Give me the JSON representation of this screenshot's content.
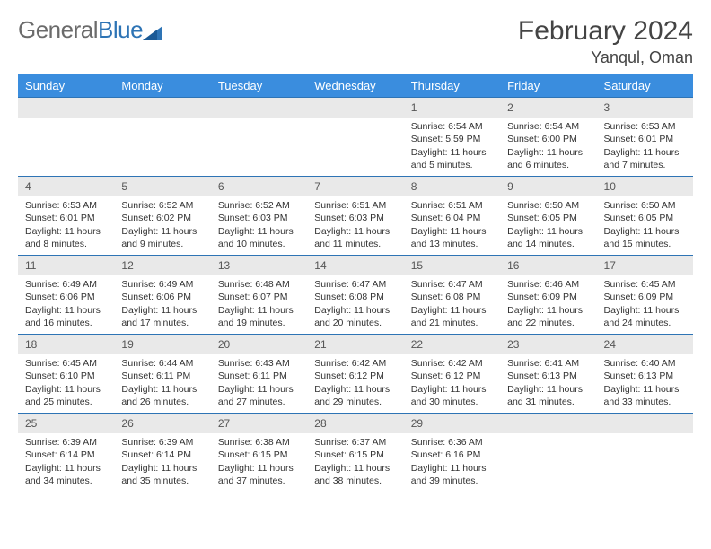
{
  "logo": {
    "text1": "General",
    "text2": "Blue"
  },
  "title": "February 2024",
  "location": "Yanqul, Oman",
  "colors": {
    "header_bg": "#3a8dde",
    "header_text": "#ffffff",
    "daynum_bg": "#e9e9e9",
    "row_border": "#2e74b5",
    "logo_gray": "#6b6b6b",
    "logo_blue": "#2e74b5"
  },
  "weekdays": [
    "Sunday",
    "Monday",
    "Tuesday",
    "Wednesday",
    "Thursday",
    "Friday",
    "Saturday"
  ],
  "weeks": [
    [
      {
        "day": "",
        "lines": []
      },
      {
        "day": "",
        "lines": []
      },
      {
        "day": "",
        "lines": []
      },
      {
        "day": "",
        "lines": []
      },
      {
        "day": "1",
        "lines": [
          "Sunrise: 6:54 AM",
          "Sunset: 5:59 PM",
          "Daylight: 11 hours and 5 minutes."
        ]
      },
      {
        "day": "2",
        "lines": [
          "Sunrise: 6:54 AM",
          "Sunset: 6:00 PM",
          "Daylight: 11 hours and 6 minutes."
        ]
      },
      {
        "day": "3",
        "lines": [
          "Sunrise: 6:53 AM",
          "Sunset: 6:01 PM",
          "Daylight: 11 hours and 7 minutes."
        ]
      }
    ],
    [
      {
        "day": "4",
        "lines": [
          "Sunrise: 6:53 AM",
          "Sunset: 6:01 PM",
          "Daylight: 11 hours and 8 minutes."
        ]
      },
      {
        "day": "5",
        "lines": [
          "Sunrise: 6:52 AM",
          "Sunset: 6:02 PM",
          "Daylight: 11 hours and 9 minutes."
        ]
      },
      {
        "day": "6",
        "lines": [
          "Sunrise: 6:52 AM",
          "Sunset: 6:03 PM",
          "Daylight: 11 hours and 10 minutes."
        ]
      },
      {
        "day": "7",
        "lines": [
          "Sunrise: 6:51 AM",
          "Sunset: 6:03 PM",
          "Daylight: 11 hours and 11 minutes."
        ]
      },
      {
        "day": "8",
        "lines": [
          "Sunrise: 6:51 AM",
          "Sunset: 6:04 PM",
          "Daylight: 11 hours and 13 minutes."
        ]
      },
      {
        "day": "9",
        "lines": [
          "Sunrise: 6:50 AM",
          "Sunset: 6:05 PM",
          "Daylight: 11 hours and 14 minutes."
        ]
      },
      {
        "day": "10",
        "lines": [
          "Sunrise: 6:50 AM",
          "Sunset: 6:05 PM",
          "Daylight: 11 hours and 15 minutes."
        ]
      }
    ],
    [
      {
        "day": "11",
        "lines": [
          "Sunrise: 6:49 AM",
          "Sunset: 6:06 PM",
          "Daylight: 11 hours and 16 minutes."
        ]
      },
      {
        "day": "12",
        "lines": [
          "Sunrise: 6:49 AM",
          "Sunset: 6:06 PM",
          "Daylight: 11 hours and 17 minutes."
        ]
      },
      {
        "day": "13",
        "lines": [
          "Sunrise: 6:48 AM",
          "Sunset: 6:07 PM",
          "Daylight: 11 hours and 19 minutes."
        ]
      },
      {
        "day": "14",
        "lines": [
          "Sunrise: 6:47 AM",
          "Sunset: 6:08 PM",
          "Daylight: 11 hours and 20 minutes."
        ]
      },
      {
        "day": "15",
        "lines": [
          "Sunrise: 6:47 AM",
          "Sunset: 6:08 PM",
          "Daylight: 11 hours and 21 minutes."
        ]
      },
      {
        "day": "16",
        "lines": [
          "Sunrise: 6:46 AM",
          "Sunset: 6:09 PM",
          "Daylight: 11 hours and 22 minutes."
        ]
      },
      {
        "day": "17",
        "lines": [
          "Sunrise: 6:45 AM",
          "Sunset: 6:09 PM",
          "Daylight: 11 hours and 24 minutes."
        ]
      }
    ],
    [
      {
        "day": "18",
        "lines": [
          "Sunrise: 6:45 AM",
          "Sunset: 6:10 PM",
          "Daylight: 11 hours and 25 minutes."
        ]
      },
      {
        "day": "19",
        "lines": [
          "Sunrise: 6:44 AM",
          "Sunset: 6:11 PM",
          "Daylight: 11 hours and 26 minutes."
        ]
      },
      {
        "day": "20",
        "lines": [
          "Sunrise: 6:43 AM",
          "Sunset: 6:11 PM",
          "Daylight: 11 hours and 27 minutes."
        ]
      },
      {
        "day": "21",
        "lines": [
          "Sunrise: 6:42 AM",
          "Sunset: 6:12 PM",
          "Daylight: 11 hours and 29 minutes."
        ]
      },
      {
        "day": "22",
        "lines": [
          "Sunrise: 6:42 AM",
          "Sunset: 6:12 PM",
          "Daylight: 11 hours and 30 minutes."
        ]
      },
      {
        "day": "23",
        "lines": [
          "Sunrise: 6:41 AM",
          "Sunset: 6:13 PM",
          "Daylight: 11 hours and 31 minutes."
        ]
      },
      {
        "day": "24",
        "lines": [
          "Sunrise: 6:40 AM",
          "Sunset: 6:13 PM",
          "Daylight: 11 hours and 33 minutes."
        ]
      }
    ],
    [
      {
        "day": "25",
        "lines": [
          "Sunrise: 6:39 AM",
          "Sunset: 6:14 PM",
          "Daylight: 11 hours and 34 minutes."
        ]
      },
      {
        "day": "26",
        "lines": [
          "Sunrise: 6:39 AM",
          "Sunset: 6:14 PM",
          "Daylight: 11 hours and 35 minutes."
        ]
      },
      {
        "day": "27",
        "lines": [
          "Sunrise: 6:38 AM",
          "Sunset: 6:15 PM",
          "Daylight: 11 hours and 37 minutes."
        ]
      },
      {
        "day": "28",
        "lines": [
          "Sunrise: 6:37 AM",
          "Sunset: 6:15 PM",
          "Daylight: 11 hours and 38 minutes."
        ]
      },
      {
        "day": "29",
        "lines": [
          "Sunrise: 6:36 AM",
          "Sunset: 6:16 PM",
          "Daylight: 11 hours and 39 minutes."
        ]
      },
      {
        "day": "",
        "lines": []
      },
      {
        "day": "",
        "lines": []
      }
    ]
  ]
}
